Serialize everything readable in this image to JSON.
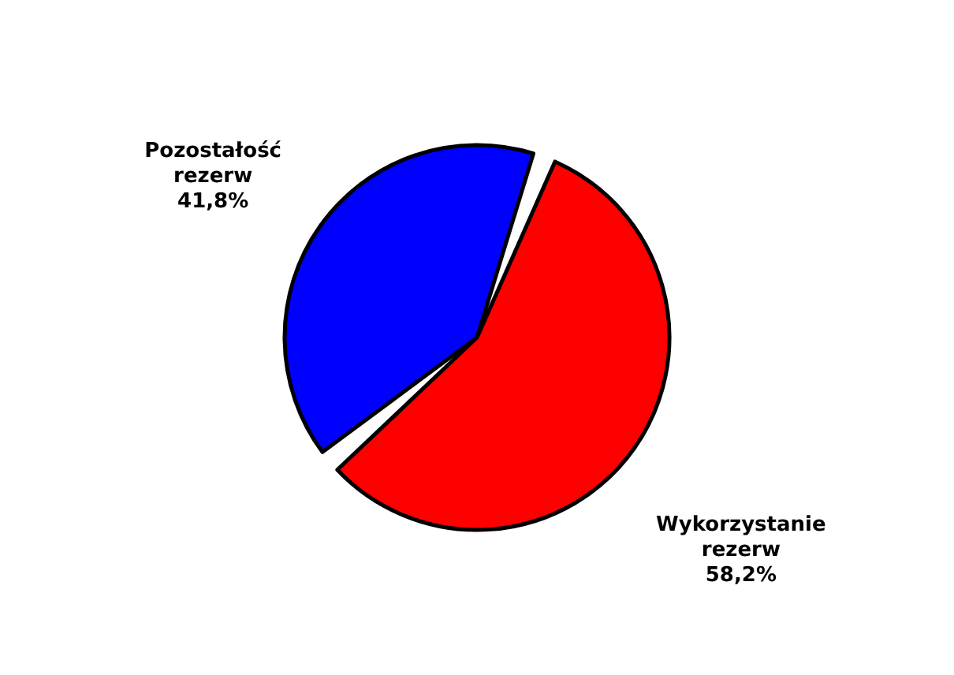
{
  "chart_data": {
    "type": "pie",
    "categories": [
      "Pozostałość rezerw",
      "Wykorzystanie rezerw"
    ],
    "values": [
      41.8,
      58.2
    ],
    "value_labels": [
      "41,8%",
      "58,2%"
    ],
    "colors": [
      "#0000ff",
      "#ff0000"
    ]
  }
}
